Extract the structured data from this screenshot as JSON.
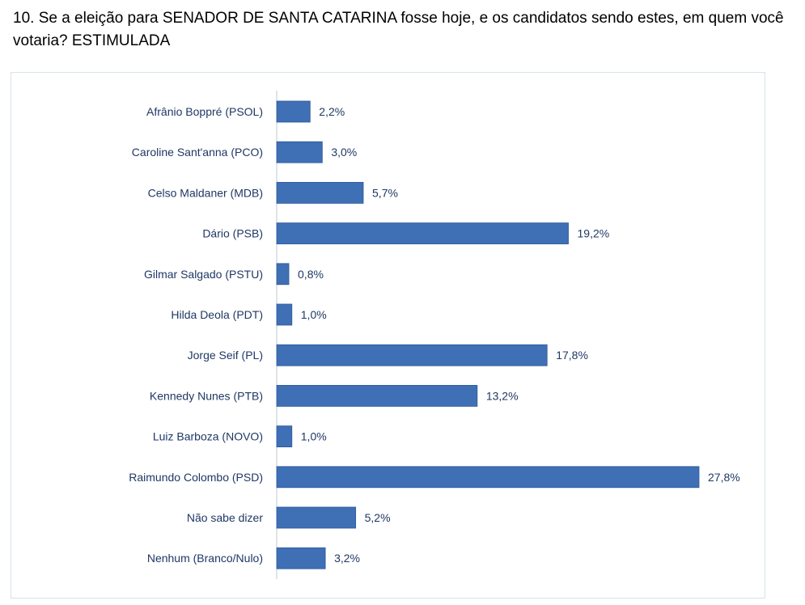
{
  "question": {
    "text": "10. Se a eleição para SENADOR DE SANTA CATARINA fosse hoje, e os candidatos sendo estes, em quem você votaria? ESTIMULADA"
  },
  "colors": {
    "bar": "#3f6fb4",
    "bar_edge": "#2e5a9a",
    "text": "#1f3864",
    "axis": "#bfcad3",
    "frame": "#d6e3ea"
  },
  "chart_data": {
    "type": "bar",
    "orientation": "horizontal",
    "title": "",
    "xlabel": "",
    "ylabel": "",
    "unit": "%",
    "grid": false,
    "legend": "none",
    "xlim": [
      0,
      28
    ],
    "categories": [
      "Afrânio Boppré (PSOL)",
      "Caroline Sant'anna (PCO)",
      "Celso Maldaner (MDB)",
      "Dário (PSB)",
      "Gilmar Salgado (PSTU)",
      "Hilda Deola (PDT)",
      "Jorge Seif (PL)",
      "Kennedy Nunes (PTB)",
      "Luiz Barboza (NOVO)",
      "Raimundo Colombo (PSD)",
      "Não sabe dizer",
      "Nenhum (Branco/Nulo)"
    ],
    "values": [
      2.2,
      3.0,
      5.7,
      19.2,
      0.8,
      1.0,
      17.8,
      13.2,
      1.0,
      27.8,
      5.2,
      3.2
    ],
    "data_labels": [
      "2,2%",
      "3,0%",
      "5,7%",
      "19,2%",
      "0,8%",
      "1,0%",
      "17,8%",
      "13,2%",
      "1,0%",
      "27,8%",
      "5,2%",
      "3,2%"
    ]
  }
}
